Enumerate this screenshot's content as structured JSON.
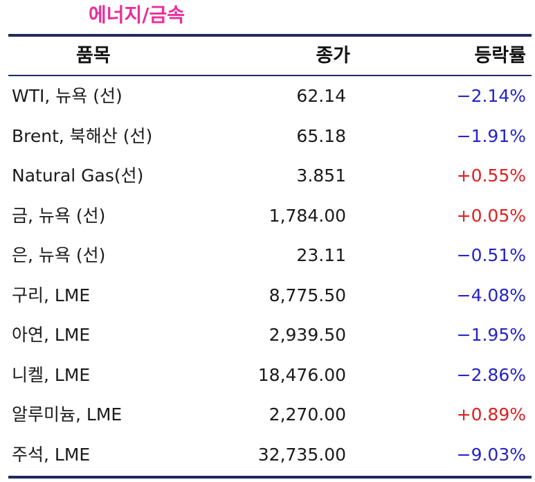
{
  "title": "에너지/금속",
  "table": {
    "headers": {
      "item": "품목",
      "close": "종가",
      "change": "등락률"
    },
    "rows": [
      {
        "item": "WTI, 뉴욕 (선)",
        "close": "62.14",
        "change": "−2.14%",
        "direction": "down"
      },
      {
        "item": "Brent, 북해산 (선)",
        "close": "65.18",
        "change": "−1.91%",
        "direction": "down"
      },
      {
        "item": "Natural Gas(선)",
        "close": "3.851",
        "change": "+0.55%",
        "direction": "up"
      },
      {
        "item": "금, 뉴욕  (선)",
        "close": "1,784.00",
        "change": "+0.05%",
        "direction": "up"
      },
      {
        "item": "은, 뉴욕  (선)",
        "close": "23.11",
        "change": "−0.51%",
        "direction": "down"
      },
      {
        "item": "구리, LME",
        "close": "8,775.50",
        "change": "−4.08%",
        "direction": "down"
      },
      {
        "item": "아연, LME",
        "close": "2,939.50",
        "change": "−1.95%",
        "direction": "down"
      },
      {
        "item": "니켈, LME",
        "close": "18,476.00",
        "change": "−2.86%",
        "direction": "down"
      },
      {
        "item": "알루미늄, LME",
        "close": "2,270.00",
        "change": "+0.89%",
        "direction": "up"
      },
      {
        "item": "주석, LME",
        "close": "32,735.00",
        "change": "−9.03%",
        "direction": "down"
      }
    ]
  },
  "colors": {
    "title": "#ec2d9a",
    "rule": "#1f2a5c",
    "negative": "#2323c8",
    "positive": "#e01e1e"
  }
}
